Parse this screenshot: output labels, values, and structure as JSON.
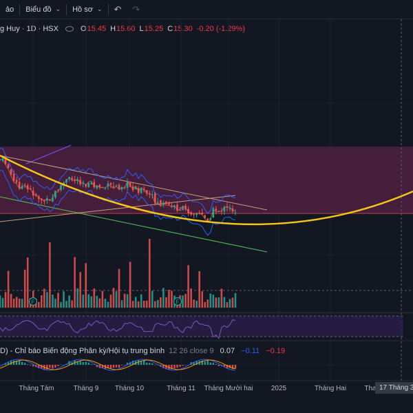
{
  "toolbar": {
    "item_partial": "ảo",
    "chart_type_label": "Biểu đồ",
    "profile_label": "Hồ sơ"
  },
  "icons": {
    "undo": "undo-icon",
    "redo": "redo-icon",
    "chevron": "chevron-down-icon",
    "eye": "eye-icon",
    "forecast_marker": "F"
  },
  "legend": {
    "symbol": "g Huy · 1D · HSX",
    "open_label": "O",
    "open": "15.45",
    "high_label": "H",
    "high": "15.60",
    "low_label": "L",
    "low": "15.25",
    "close_label": "C",
    "close": "15.30",
    "change": "-0.20 (-1.29%)"
  },
  "macd_legend": {
    "name": "D) - Chỉ báo Biến động Phân kỳ/Hội tụ trung bình",
    "params": "12 26 close 9",
    "value1": "0.07",
    "value2": "−0.11",
    "value3": "−0.19"
  },
  "time_axis": {
    "labels": [
      "Tháng Tám",
      "Tháng 9",
      "Tháng 10",
      "Tháng 11",
      "Tháng Mười hai",
      "2025",
      "Tháng Hai",
      "Tha"
    ],
    "cursor_label": "17 Tháng 3 '2"
  },
  "colors": {
    "background": "#131722",
    "up": "#26a69a",
    "down": "#ef5350",
    "zone": "#4a1f3e",
    "arc": "#f5c518",
    "bollinger": "#2962ff",
    "rsi": "#7e57c2",
    "trend_green": "#4caf50",
    "trend_purple": "#7b4fff",
    "trend_tan": "#c8a27a"
  }
}
